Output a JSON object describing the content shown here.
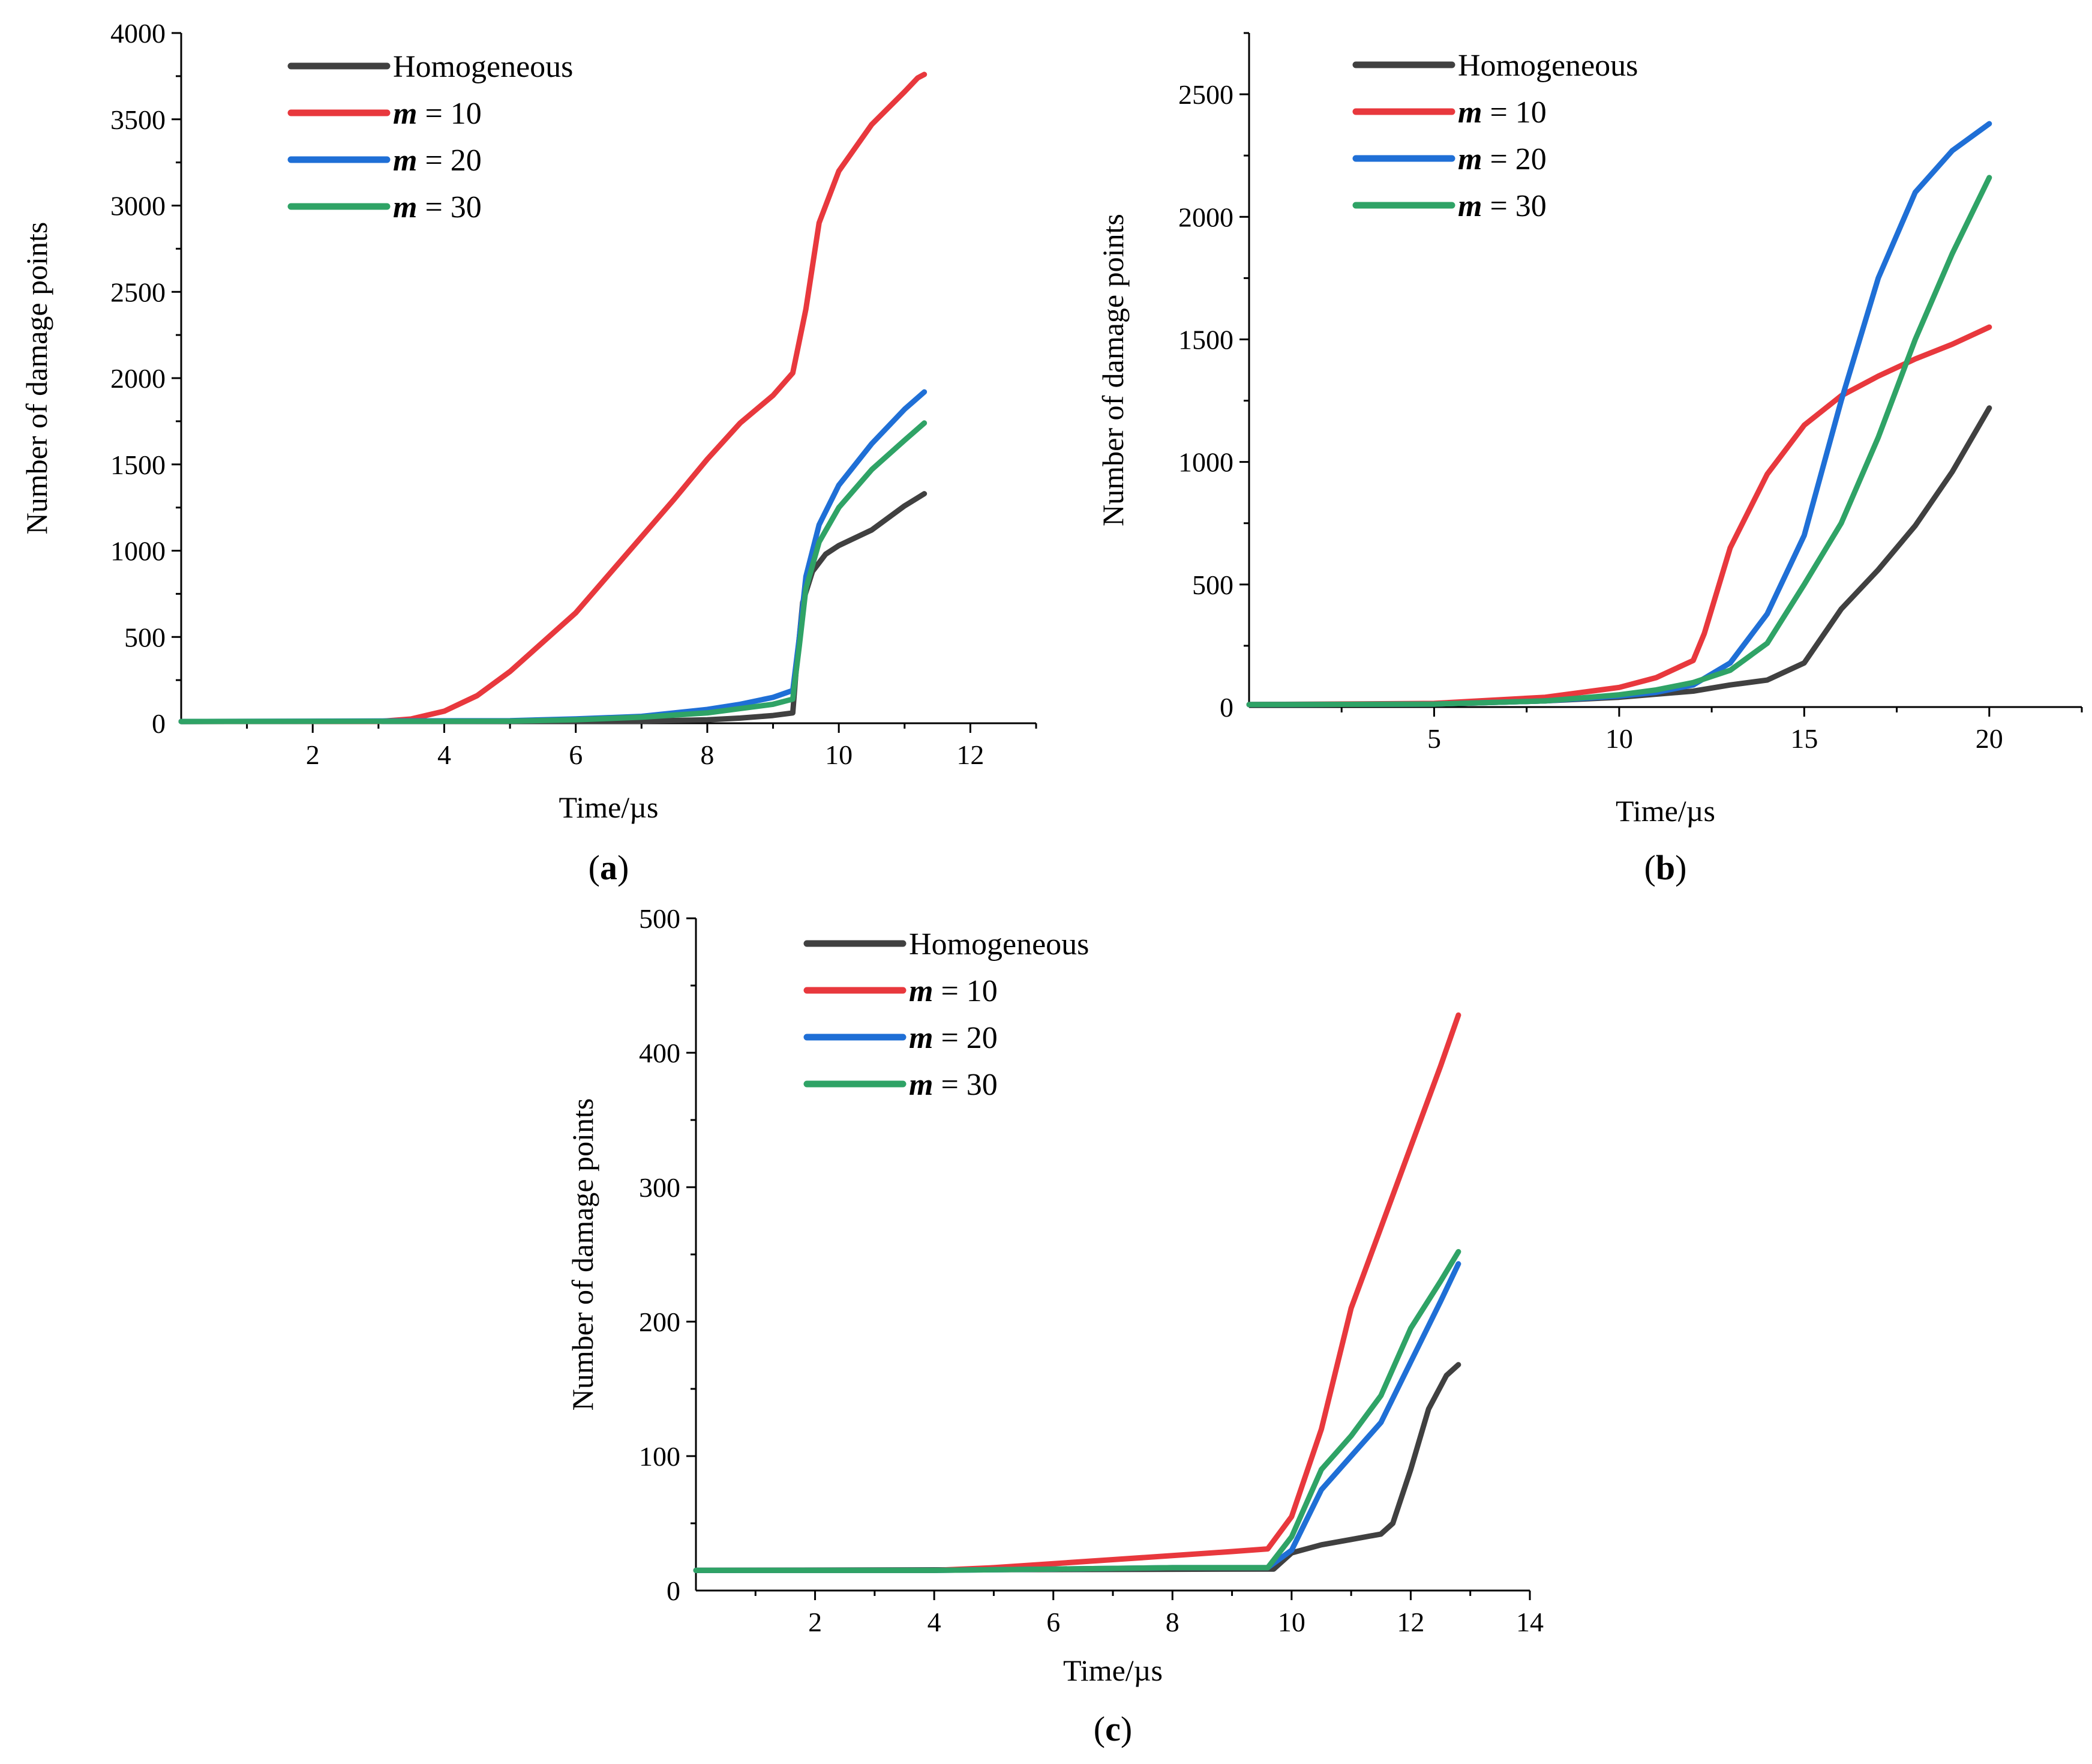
{
  "colors": {
    "homogeneous": "#404040",
    "m10": "#e8383d",
    "m20": "#1f6fd6",
    "m30": "#2fa366"
  },
  "chart_data": [
    {
      "type": "line",
      "panel_label": "a",
      "xlabel": "Time/µs",
      "ylabel": "Number of damage points",
      "xlim": [
        0,
        13
      ],
      "ylim": [
        0,
        4000
      ],
      "xticks": [
        2,
        4,
        6,
        8,
        10,
        12
      ],
      "yticks": [
        0,
        500,
        1000,
        1500,
        2000,
        2500,
        3000,
        3500,
        4000
      ],
      "legend_position": "top-left",
      "series": [
        {
          "name": "Homogeneous",
          "color_key": "homogeneous",
          "x": [
            0,
            7,
            8,
            8.5,
            9,
            9.3,
            9.35,
            9.45,
            9.6,
            9.8,
            10,
            10.5,
            11,
            11.3
          ],
          "y": [
            10,
            12,
            20,
            30,
            45,
            60,
            300,
            700,
            880,
            980,
            1030,
            1120,
            1260,
            1330
          ]
        },
        {
          "name": "= 10",
          "name_prefix": "m",
          "color_key": "m10",
          "x": [
            0,
            3,
            3.5,
            4,
            4.5,
            5,
            6,
            7,
            7.5,
            8,
            8.5,
            9,
            9.3,
            9.5,
            9.7,
            10,
            10.5,
            11,
            11.2,
            11.3
          ],
          "y": [
            10,
            10,
            25,
            70,
            160,
            300,
            640,
            1080,
            1300,
            1530,
            1740,
            1900,
            2030,
            2400,
            2900,
            3200,
            3470,
            3660,
            3740,
            3760
          ]
        },
        {
          "name": "= 20",
          "name_prefix": "m",
          "color_key": "m20",
          "x": [
            0,
            5,
            6,
            7,
            8,
            8.5,
            9,
            9.3,
            9.4,
            9.5,
            9.7,
            10,
            10.5,
            11,
            11.3
          ],
          "y": [
            10,
            15,
            25,
            40,
            80,
            110,
            150,
            190,
            500,
            850,
            1150,
            1380,
            1620,
            1820,
            1920
          ]
        },
        {
          "name": "= 30",
          "name_prefix": "m",
          "color_key": "m30",
          "x": [
            0,
            5,
            6,
            7,
            8,
            8.5,
            9,
            9.3,
            9.4,
            9.5,
            9.7,
            10,
            10.5,
            11,
            11.3
          ],
          "y": [
            10,
            12,
            20,
            35,
            60,
            85,
            110,
            140,
            450,
            780,
            1050,
            1250,
            1470,
            1640,
            1740
          ]
        }
      ]
    },
    {
      "type": "line",
      "panel_label": "b",
      "xlabel": "Time/µs",
      "ylabel": "Number of damage points",
      "xlim": [
        0,
        22.5
      ],
      "ylim": [
        0,
        2750
      ],
      "xticks": [
        5,
        10,
        15,
        20
      ],
      "yticks": [
        0,
        500,
        1000,
        1500,
        2000,
        2500
      ],
      "legend_position": "top-left",
      "series": [
        {
          "name": "Homogeneous",
          "color_key": "homogeneous",
          "x": [
            0,
            5,
            8,
            10,
            12,
            13,
            14,
            15,
            16,
            17,
            18,
            19,
            20
          ],
          "y": [
            10,
            12,
            25,
            40,
            65,
            90,
            110,
            180,
            400,
            560,
            740,
            960,
            1220
          ]
        },
        {
          "name": "= 10",
          "name_prefix": "m",
          "color_key": "m10",
          "x": [
            0,
            5,
            8,
            10,
            11,
            12,
            12.3,
            13,
            14,
            15,
            16,
            17,
            18,
            19,
            20
          ],
          "y": [
            10,
            15,
            40,
            80,
            120,
            190,
            300,
            650,
            950,
            1150,
            1270,
            1350,
            1420,
            1480,
            1550
          ]
        },
        {
          "name": "= 20",
          "name_prefix": "m",
          "color_key": "m20",
          "x": [
            0,
            5,
            8,
            10,
            11,
            12,
            13,
            14,
            15,
            16,
            17,
            18,
            19,
            20
          ],
          "y": [
            10,
            12,
            25,
            45,
            60,
            90,
            180,
            380,
            700,
            1250,
            1750,
            2100,
            2270,
            2380
          ]
        },
        {
          "name": "= 30",
          "name_prefix": "m",
          "color_key": "m30",
          "x": [
            0,
            5,
            8,
            10,
            11,
            12,
            13,
            14,
            15,
            16,
            17,
            18,
            19,
            20
          ],
          "y": [
            10,
            12,
            25,
            50,
            70,
            100,
            150,
            260,
            500,
            750,
            1100,
            1500,
            1850,
            2160
          ]
        }
      ]
    },
    {
      "type": "line",
      "panel_label": "c",
      "xlabel": "Time/µs",
      "ylabel": "Number of damage points",
      "xlim": [
        0,
        14
      ],
      "ylim": [
        0,
        500
      ],
      "xticks": [
        2,
        4,
        6,
        8,
        10,
        12,
        14
      ],
      "yticks": [
        0,
        100,
        200,
        300,
        400,
        500
      ],
      "legend_position": "top-center",
      "series": [
        {
          "name": "Homogeneous",
          "color_key": "homogeneous",
          "x": [
            0,
            9.7,
            10,
            10.5,
            11,
            11.5,
            11.7,
            12,
            12.3,
            12.6,
            12.8
          ],
          "y": [
            15,
            16,
            28,
            34,
            38,
            42,
            50,
            90,
            135,
            160,
            168
          ]
        },
        {
          "name": "= 10",
          "name_prefix": "m",
          "color_key": "m10",
          "x": [
            0,
            4,
            5,
            6,
            7,
            8,
            9,
            9.6,
            10,
            10.5,
            11,
            11.5,
            12,
            12.5,
            12.8
          ],
          "y": [
            15,
            15,
            17,
            20,
            23,
            26,
            29,
            31,
            55,
            120,
            210,
            270,
            330,
            390,
            428
          ]
        },
        {
          "name": "= 20",
          "name_prefix": "m",
          "color_key": "m20",
          "x": [
            0,
            4,
            6,
            8,
            9.6,
            10,
            10.5,
            11,
            11.5,
            12,
            12.5,
            12.8
          ],
          "y": [
            15,
            15,
            16,
            17,
            17,
            30,
            75,
            100,
            125,
            170,
            215,
            243
          ]
        },
        {
          "name": "= 30",
          "name_prefix": "m",
          "color_key": "m30",
          "x": [
            0,
            4,
            6,
            8,
            9.6,
            10,
            10.5,
            11,
            11.5,
            12,
            12.5,
            12.8
          ],
          "y": [
            15,
            15,
            16,
            17,
            17,
            40,
            90,
            115,
            145,
            195,
            230,
            252
          ]
        }
      ]
    }
  ]
}
